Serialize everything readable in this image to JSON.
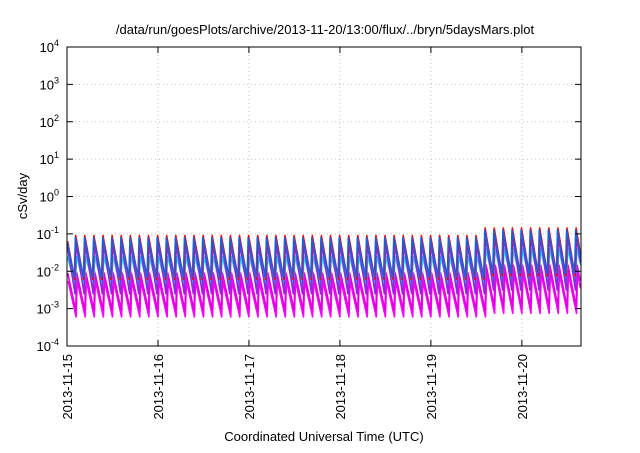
{
  "chart_data": {
    "type": "line",
    "title": "/data/run/goesPlots/archive/2013-11-20/13:00/flux/../bryn/5daysMars.plot",
    "xlabel": "Coordinated Universal Time (UTC)",
    "ylabel": "cSv/day",
    "y_scale": "log",
    "ylim_exp": [
      -4,
      4
    ],
    "y_ticks": [
      {
        "base": "10",
        "exp": "-4"
      },
      {
        "base": "10",
        "exp": "-3"
      },
      {
        "base": "10",
        "exp": "-2"
      },
      {
        "base": "10",
        "exp": "-1"
      },
      {
        "base": "10",
        "exp": "0"
      },
      {
        "base": "10",
        "exp": "1"
      },
      {
        "base": "10",
        "exp": "2"
      },
      {
        "base": "10",
        "exp": "3"
      },
      {
        "base": "10",
        "exp": "4"
      }
    ],
    "x_range_days": [
      0,
      5.65
    ],
    "x_ticks": [
      "2013-11-15",
      "2013-11-16",
      "2013-11-17",
      "2013-11-18",
      "2013-11-19",
      "2013-11-20"
    ],
    "grid": true,
    "cycle_period_days": 0.1,
    "series": [
      {
        "color": "#ff00ff",
        "peak": 0.0055,
        "trough": 0.0006
      },
      {
        "color": "#e000e0",
        "peak": 0.009,
        "trough": 0.0009
      },
      {
        "color": "#00e5ee",
        "peak": 0.025,
        "trough": 0.004
      },
      {
        "color": "#8a2be2",
        "peak": 0.055,
        "trough": 0.0025
      },
      {
        "color": "#ff0000",
        "peak": 0.09,
        "trough": 0.006
      },
      {
        "color": "#1e5fd8",
        "peak": 0.08,
        "trough": 0.007
      }
    ],
    "late_peak_multiplier": 1.6,
    "late_peak_start_day": 4.55
  }
}
